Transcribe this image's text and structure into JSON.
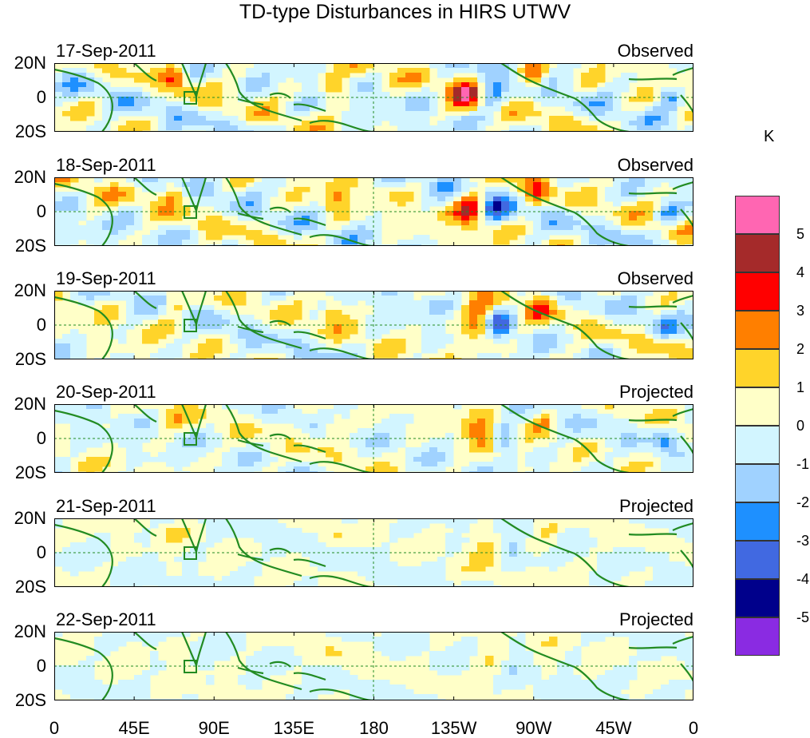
{
  "title": "TD-type Disturbances in HIRS UTWV",
  "panels": [
    {
      "date": "17-Sep-2011",
      "status": "Observed",
      "amp": 1.0,
      "shift": 0
    },
    {
      "date": "18-Sep-2011",
      "status": "Observed",
      "amp": 1.0,
      "shift": 1
    },
    {
      "date": "19-Sep-2011",
      "status": "Observed",
      "amp": 0.9,
      "shift": 2
    },
    {
      "date": "20-Sep-2011",
      "status": "Projected",
      "amp": 0.7,
      "shift": 3
    },
    {
      "date": "21-Sep-2011",
      "status": "Projected",
      "amp": 0.45,
      "shift": 4
    },
    {
      "date": "22-Sep-2011",
      "status": "Projected",
      "amp": 0.3,
      "shift": 5
    }
  ],
  "lat_labels": [
    "20N",
    "0",
    "20S"
  ],
  "lon_labels": [
    "0",
    "45E",
    "90E",
    "135E",
    "180",
    "135W",
    "90W",
    "45W",
    "0"
  ],
  "colorbar": {
    "unit": "K",
    "ticks": [
      "5",
      "4",
      "3",
      "2",
      "1",
      "0",
      "-1",
      "-2",
      "-3",
      "-4",
      "-5"
    ],
    "colors": [
      "#ff66b2",
      "#a52a2a",
      "#ff0000",
      "#ff7f00",
      "#ffd42a",
      "#ffffc8",
      "#d2f5ff",
      "#a0d2ff",
      "#1e90ff",
      "#4169e1",
      "#00008b",
      "#8a2be2"
    ]
  },
  "colors": {
    "coast": "#228b22",
    "guide": "#228b22"
  }
}
